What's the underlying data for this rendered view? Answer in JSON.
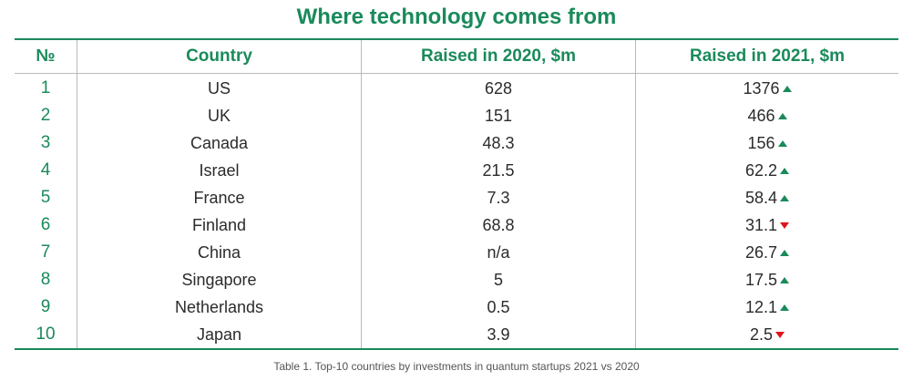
{
  "title": "Where technology comes from",
  "table": {
    "headers": {
      "num": "№",
      "country": "Country",
      "raised_2020": "Raised in 2020, $m",
      "raised_2021": "Raised in 2021, $m"
    },
    "rows": [
      {
        "num": "1",
        "country": "US",
        "raised_2020": "628",
        "raised_2021": "1376",
        "trend": "up"
      },
      {
        "num": "2",
        "country": "UK",
        "raised_2020": "151",
        "raised_2021": "466",
        "trend": "up"
      },
      {
        "num": "3",
        "country": "Canada",
        "raised_2020": "48.3",
        "raised_2021": "156",
        "trend": "up"
      },
      {
        "num": "4",
        "country": "Israel",
        "raised_2020": "21.5",
        "raised_2021": "62.2",
        "trend": "up"
      },
      {
        "num": "5",
        "country": "France",
        "raised_2020": "7.3",
        "raised_2021": "58.4",
        "trend": "up"
      },
      {
        "num": "6",
        "country": "Finland",
        "raised_2020": "68.8",
        "raised_2021": "31.1",
        "trend": "down"
      },
      {
        "num": "7",
        "country": "China",
        "raised_2020": "n/a",
        "raised_2021": "26.7",
        "trend": "up"
      },
      {
        "num": "8",
        "country": "Singapore",
        "raised_2020": "5",
        "raised_2021": "17.5",
        "trend": "up"
      },
      {
        "num": "9",
        "country": "Netherlands",
        "raised_2020": "0.5",
        "raised_2021": "12.1",
        "trend": "up"
      },
      {
        "num": "10",
        "country": "Japan",
        "raised_2020": "3.9",
        "raised_2021": "2.5",
        "trend": "down"
      }
    ]
  },
  "caption": "Table 1. Top-10 countries by investments in quantum startups 2021 vs 2020",
  "colors": {
    "accent": "#1a8a5a",
    "up": "#1a8a5a",
    "down": "#e0131c",
    "grid": "#b9b9b9"
  },
  "icons": {
    "up": "triangle-up-icon",
    "down": "triangle-down-icon"
  }
}
